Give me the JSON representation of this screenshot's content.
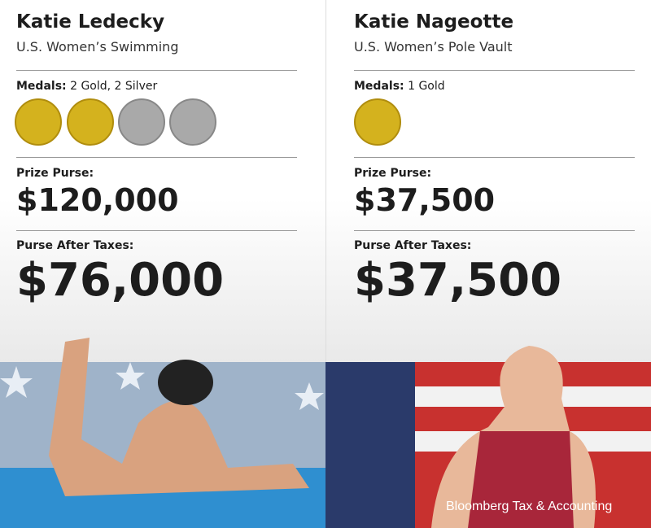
{
  "athletes": [
    {
      "name": "Katie Ledecky",
      "event": "U.S. Women’s Swimming",
      "medals_label": "Medals:",
      "medals": "2 Gold, 2 Silver",
      "prize_label": "Prize Purse:",
      "prize": "$120,000",
      "after_tax_label": "Purse After Taxes:",
      "after_tax": "$76,000"
    },
    {
      "name": "Katie Nageotte",
      "event": "U.S. Women’s Pole Vault",
      "medals_label": "Medals:",
      "medals": "1 Gold",
      "prize_label": "Prize Purse:",
      "prize": "$37,500",
      "after_tax_label": "Purse After Taxes:",
      "after_tax": "$37,500"
    }
  ],
  "footer": "Bloomberg Tax & Accounting"
}
